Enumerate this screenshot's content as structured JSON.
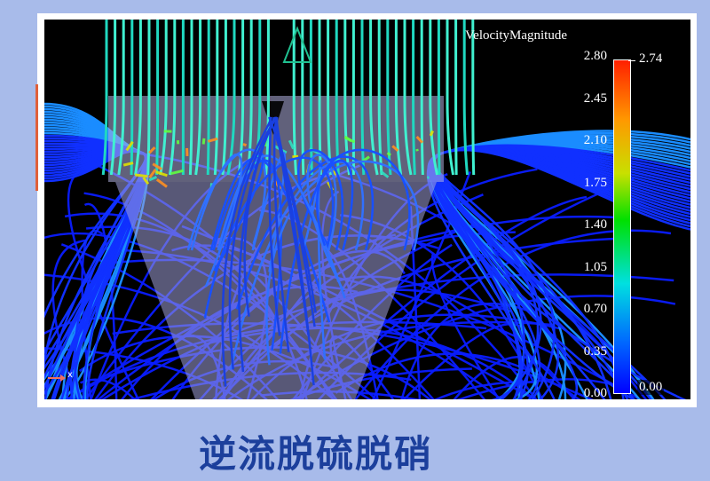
{
  "visualization": {
    "legend_title": "VelocityMagnitude",
    "ticks": [
      "2.80",
      "2.45",
      "2.10",
      "1.75",
      "1.40",
      "1.05",
      "0.70",
      "0.35",
      "0.00"
    ],
    "max_value": "2.74",
    "min_value": "0.00",
    "axis_label": "x",
    "colormap": [
      "#0000ff",
      "#00e0e0",
      "#00e000",
      "#c8e000",
      "#ff9900",
      "#ff2000"
    ]
  },
  "caption": "逆流脱硫脱硝"
}
